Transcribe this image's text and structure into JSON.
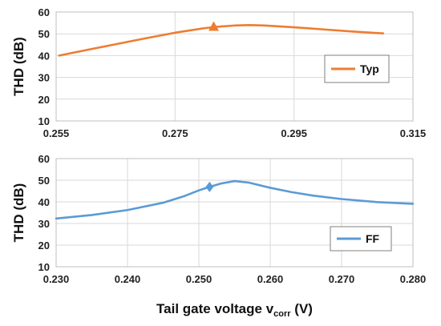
{
  "chart_data": [
    {
      "type": "line",
      "ylabel": "THD (dB)",
      "xlabel": "",
      "xlim": [
        0.255,
        0.315
      ],
      "ylim": [
        10,
        60
      ],
      "xticks": [
        "0.255",
        "0.275",
        "0.295",
        "0.315"
      ],
      "yticks": [
        "10",
        "20",
        "30",
        "40",
        "50",
        "60"
      ],
      "grid": true,
      "legend_position": "right",
      "series": [
        {
          "name": "Typ",
          "color": "#ED7D31",
          "x": [
            0.2555,
            0.26,
            0.265,
            0.27,
            0.275,
            0.28,
            0.2825,
            0.285,
            0.2875,
            0.29,
            0.295,
            0.3,
            0.305,
            0.31
          ],
          "y": [
            40.0,
            42.5,
            45.2,
            47.9,
            50.5,
            52.6,
            53.3,
            53.8,
            54.0,
            53.8,
            53.0,
            52.0,
            51.0,
            50.2
          ],
          "marker": {
            "shape": "triangle",
            "x": 0.2815,
            "y": 53.2
          }
        }
      ]
    },
    {
      "type": "line",
      "ylabel": "THD (dB)",
      "xlabel": "Tail gate voltage v",
      "xlabel_sub": "corr",
      "xlabel_unit": " (V)",
      "xlim": [
        0.23,
        0.28
      ],
      "ylim": [
        10,
        60
      ],
      "xticks": [
        "0.230",
        "0.240",
        "0.250",
        "0.260",
        "0.270",
        "0.280"
      ],
      "yticks": [
        "10",
        "20",
        "30",
        "40",
        "50",
        "60"
      ],
      "grid": true,
      "legend_position": "right",
      "series": [
        {
          "name": "FF",
          "color": "#5B9BD5",
          "x": [
            0.23,
            0.235,
            0.24,
            0.245,
            0.248,
            0.25,
            0.2515,
            0.253,
            0.255,
            0.257,
            0.26,
            0.263,
            0.266,
            0.27,
            0.275,
            0.28
          ],
          "y": [
            32.3,
            33.9,
            36.2,
            39.6,
            42.7,
            45.3,
            46.9,
            48.4,
            49.6,
            48.9,
            46.5,
            44.5,
            42.9,
            41.3,
            39.9,
            39.1
          ],
          "marker": {
            "shape": "diamond",
            "x": 0.2515,
            "y": 46.9
          }
        }
      ]
    }
  ]
}
